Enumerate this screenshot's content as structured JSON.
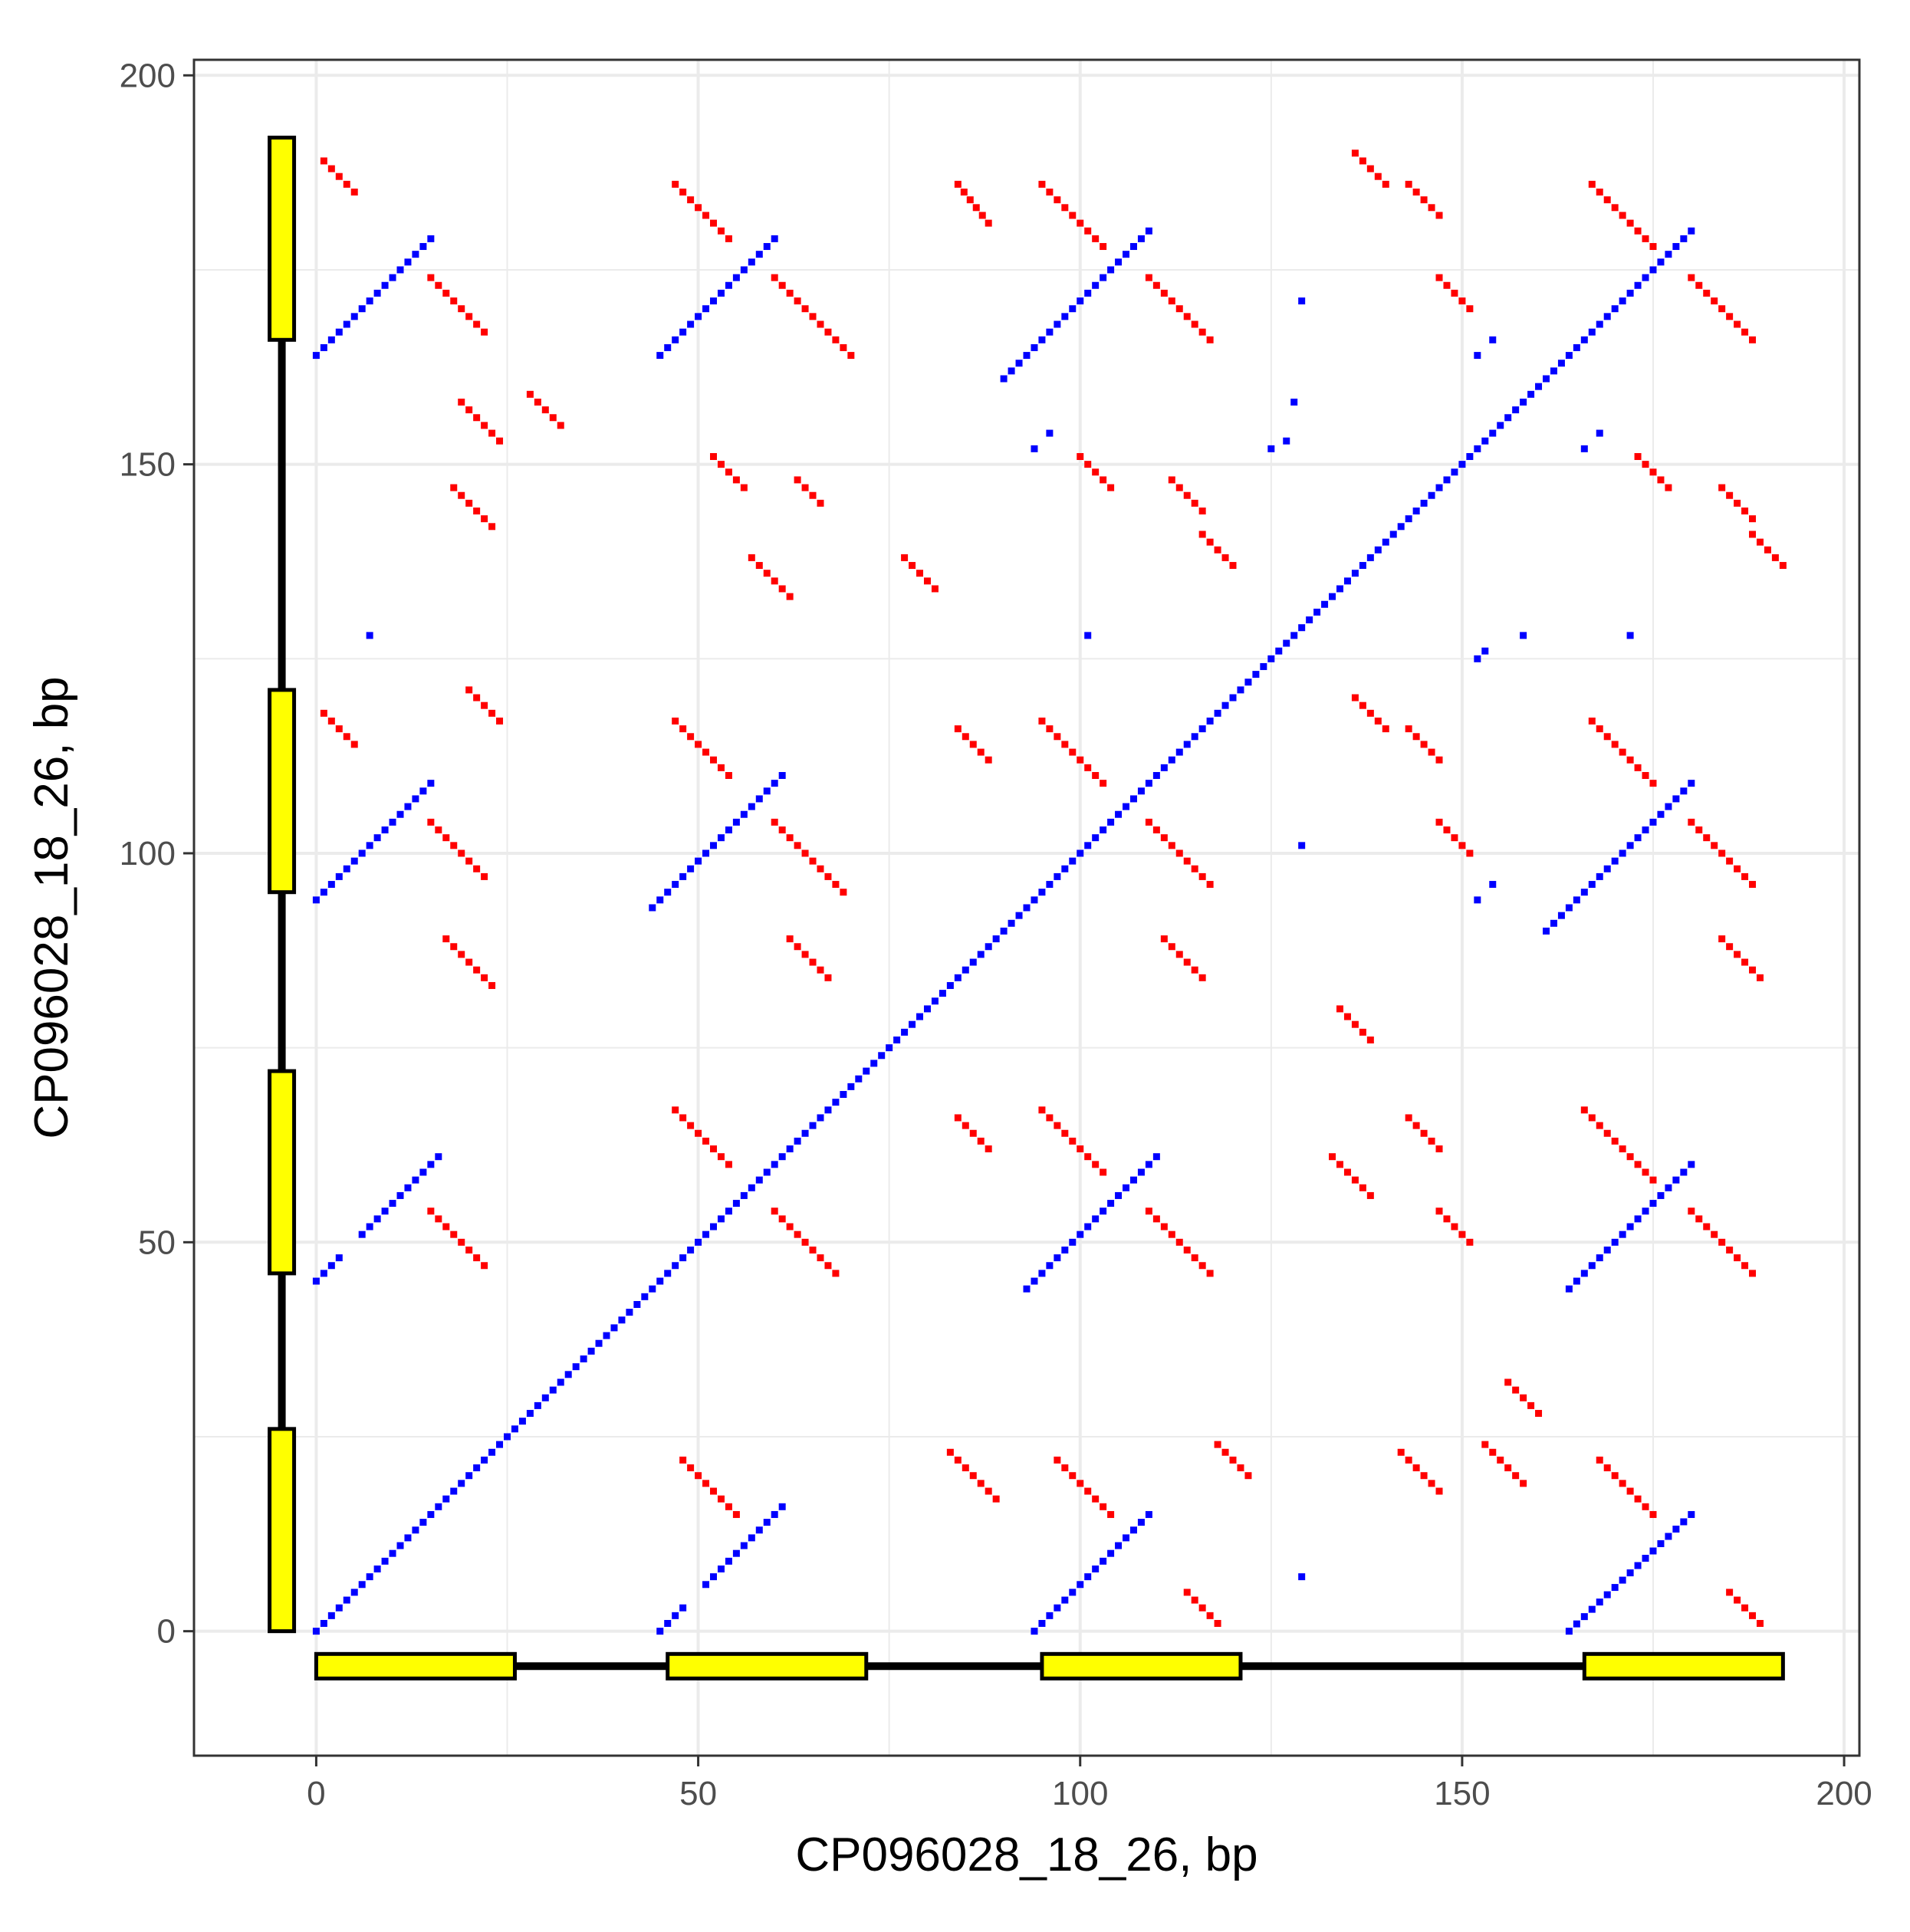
{
  "chart_data": {
    "type": "scatter",
    "title": "",
    "xlabel": "CP096028_18_26, bp",
    "ylabel": "CP096028_18_26, bp",
    "xlim": [
      -16,
      202
    ],
    "ylim": [
      -16,
      202
    ],
    "x_ticks": [
      0,
      50,
      100,
      150,
      200
    ],
    "y_ticks": [
      0,
      50,
      100,
      150,
      200
    ],
    "grid": true,
    "legend": "none",
    "colors": {
      "forward": "#0000ff",
      "reverse": "#ff0000",
      "feature_fill": "#ffff00",
      "feature_stroke": "#000000",
      "grid": "#ebebeb"
    },
    "series": [
      {
        "kind": "forward",
        "segments": [
          [
            0,
            0,
            180,
            180
          ],
          [
            0,
            164,
            15,
            179
          ],
          [
            45,
            164,
            60,
            179
          ],
          [
            90,
            161,
            109,
            180
          ],
          [
            0,
            94,
            15,
            109
          ],
          [
            44,
            93,
            61,
            110
          ],
          [
            161,
            90,
            180,
            109
          ],
          [
            0,
            45,
            3,
            48
          ],
          [
            6,
            51,
            16,
            61
          ],
          [
            93,
            44,
            110,
            61
          ],
          [
            164,
            44,
            180,
            60
          ],
          [
            45,
            0,
            48,
            3
          ],
          [
            51,
            6,
            61,
            16
          ],
          [
            94,
            0,
            109,
            15
          ],
          [
            164,
            0,
            180,
            15
          ]
        ],
        "points": [
          [
            7,
            128
          ],
          [
            101,
            128
          ],
          [
            129,
            171
          ],
          [
            152,
            164
          ],
          [
            154,
            166
          ],
          [
            128,
            158
          ],
          [
            94,
            152
          ],
          [
            96,
            154
          ],
          [
            125,
            152
          ],
          [
            127,
            153
          ],
          [
            166,
            152
          ],
          [
            168,
            154
          ],
          [
            152,
            125
          ],
          [
            153,
            126
          ],
          [
            158,
            128
          ],
          [
            172,
            128
          ],
          [
            129,
            101
          ],
          [
            152,
            94
          ],
          [
            154,
            96
          ],
          [
            129,
            7
          ]
        ]
      },
      {
        "kind": "reverse",
        "segments": [
          [
            1,
            189,
            5,
            185
          ],
          [
            47,
            186,
            54,
            179
          ],
          [
            84,
            186,
            88,
            181
          ],
          [
            95,
            186,
            103,
            178
          ],
          [
            136,
            190,
            140,
            186
          ],
          [
            143,
            186,
            147,
            182
          ],
          [
            167,
            186,
            175,
            178
          ],
          [
            15,
            174,
            22,
            167
          ],
          [
            60,
            174,
            70,
            164
          ],
          [
            109,
            174,
            117,
            166
          ],
          [
            147,
            174,
            151,
            170
          ],
          [
            180,
            174,
            188,
            166
          ],
          [
            19,
            158,
            24,
            153
          ],
          [
            28,
            159,
            32,
            155
          ],
          [
            52,
            151,
            56,
            147
          ],
          [
            63,
            148,
            66,
            145
          ],
          [
            100,
            151,
            104,
            147
          ],
          [
            112,
            148,
            116,
            144
          ],
          [
            173,
            151,
            177,
            147
          ],
          [
            184,
            147,
            188,
            143
          ],
          [
            18,
            147,
            23,
            142
          ],
          [
            57,
            138,
            62,
            133
          ],
          [
            77,
            138,
            81,
            134
          ],
          [
            116,
            141,
            120,
            137
          ],
          [
            188,
            141,
            192,
            137
          ],
          [
            20,
            121,
            24,
            117
          ],
          [
            1,
            118,
            5,
            114
          ],
          [
            47,
            117,
            54,
            110
          ],
          [
            84,
            116,
            88,
            112
          ],
          [
            95,
            117,
            103,
            109
          ],
          [
            136,
            120,
            140,
            116
          ],
          [
            143,
            116,
            147,
            112
          ],
          [
            167,
            117,
            175,
            109
          ],
          [
            15,
            104,
            22,
            97
          ],
          [
            60,
            104,
            69,
            95
          ],
          [
            109,
            104,
            117,
            96
          ],
          [
            147,
            104,
            151,
            100
          ],
          [
            180,
            104,
            188,
            96
          ],
          [
            17,
            89,
            23,
            83
          ],
          [
            62,
            89,
            67,
            84
          ],
          [
            111,
            89,
            116,
            84
          ],
          [
            184,
            89,
            189,
            84
          ],
          [
            134,
            80,
            138,
            76
          ],
          [
            47,
            67,
            54,
            60
          ],
          [
            84,
            66,
            88,
            62
          ],
          [
            95,
            67,
            103,
            59
          ],
          [
            143,
            66,
            147,
            62
          ],
          [
            166,
            67,
            175,
            58
          ],
          [
            133,
            61,
            138,
            56
          ],
          [
            15,
            54,
            22,
            47
          ],
          [
            60,
            54,
            68,
            46
          ],
          [
            109,
            54,
            117,
            46
          ],
          [
            147,
            54,
            151,
            50
          ],
          [
            180,
            54,
            188,
            46
          ],
          [
            156,
            32,
            160,
            28
          ],
          [
            48,
            22,
            55,
            15
          ],
          [
            83,
            23,
            89,
            17
          ],
          [
            97,
            22,
            104,
            15
          ],
          [
            118,
            24,
            122,
            20
          ],
          [
            142,
            23,
            147,
            18
          ],
          [
            153,
            24,
            158,
            19
          ],
          [
            168,
            22,
            175,
            15
          ],
          [
            114,
            5,
            118,
            1
          ],
          [
            185,
            5,
            189,
            1
          ]
        ],
        "points": []
      }
    ],
    "features": {
      "x_axis_track": {
        "start": 0,
        "end": 192,
        "position": -4.5,
        "blocks": [
          [
            0,
            26
          ],
          [
            46,
            72
          ],
          [
            95,
            121
          ],
          [
            166,
            192
          ]
        ]
      },
      "y_axis_track": {
        "start": 0,
        "end": 192,
        "position": -4.5,
        "blocks": [
          [
            0,
            26
          ],
          [
            46,
            72
          ],
          [
            95,
            121
          ],
          [
            166,
            192
          ]
        ]
      }
    }
  }
}
